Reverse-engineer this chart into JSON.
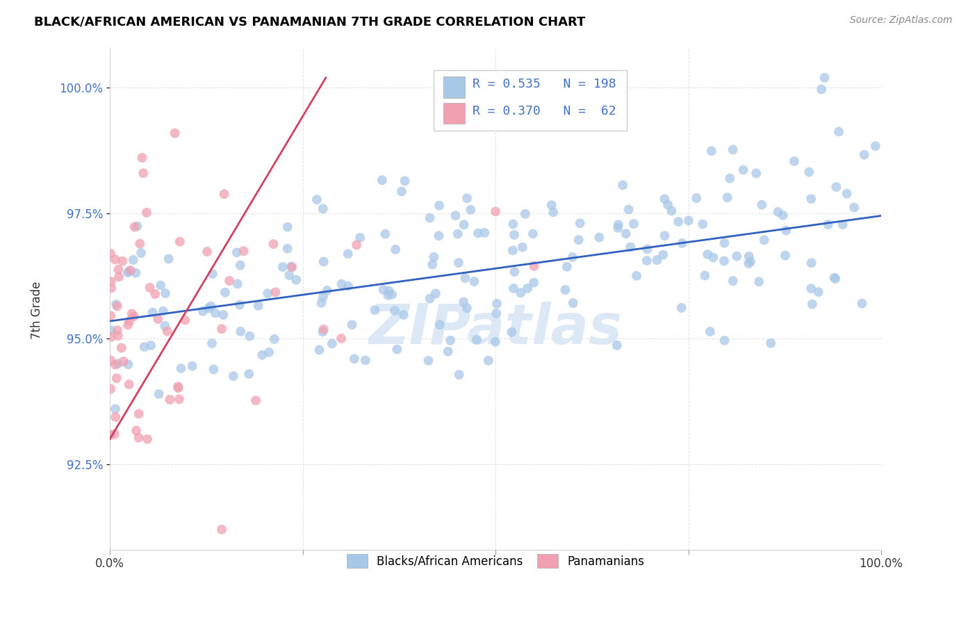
{
  "title": "BLACK/AFRICAN AMERICAN VS PANAMANIAN 7TH GRADE CORRELATION CHART",
  "source": "Source: ZipAtlas.com",
  "ylabel": "7th Grade",
  "ytick_labels": [
    "92.5%",
    "95.0%",
    "97.5%",
    "100.0%"
  ],
  "ytick_values": [
    0.925,
    0.95,
    0.975,
    1.0
  ],
  "xlim": [
    0.0,
    1.0
  ],
  "ylim": [
    0.908,
    1.008
  ],
  "blue_color": "#a8c8e8",
  "pink_color": "#f0a0b0",
  "line_blue": "#3060c0",
  "line_pink": "#d04060",
  "background_color": "#ffffff",
  "grid_color": "#cccccc",
  "watermark_color": "#dce8f5",
  "blue_line_y_start": 0.9535,
  "blue_line_y_end": 0.9745,
  "pink_line_x_start": 0.0,
  "pink_line_x_end": 0.28,
  "pink_line_y_start": 0.93,
  "pink_line_y_end": 1.002,
  "legend_text_color": "#4472c4",
  "axis_text_color": "#4472c4",
  "title_color": "#000000",
  "source_color": "#888888"
}
